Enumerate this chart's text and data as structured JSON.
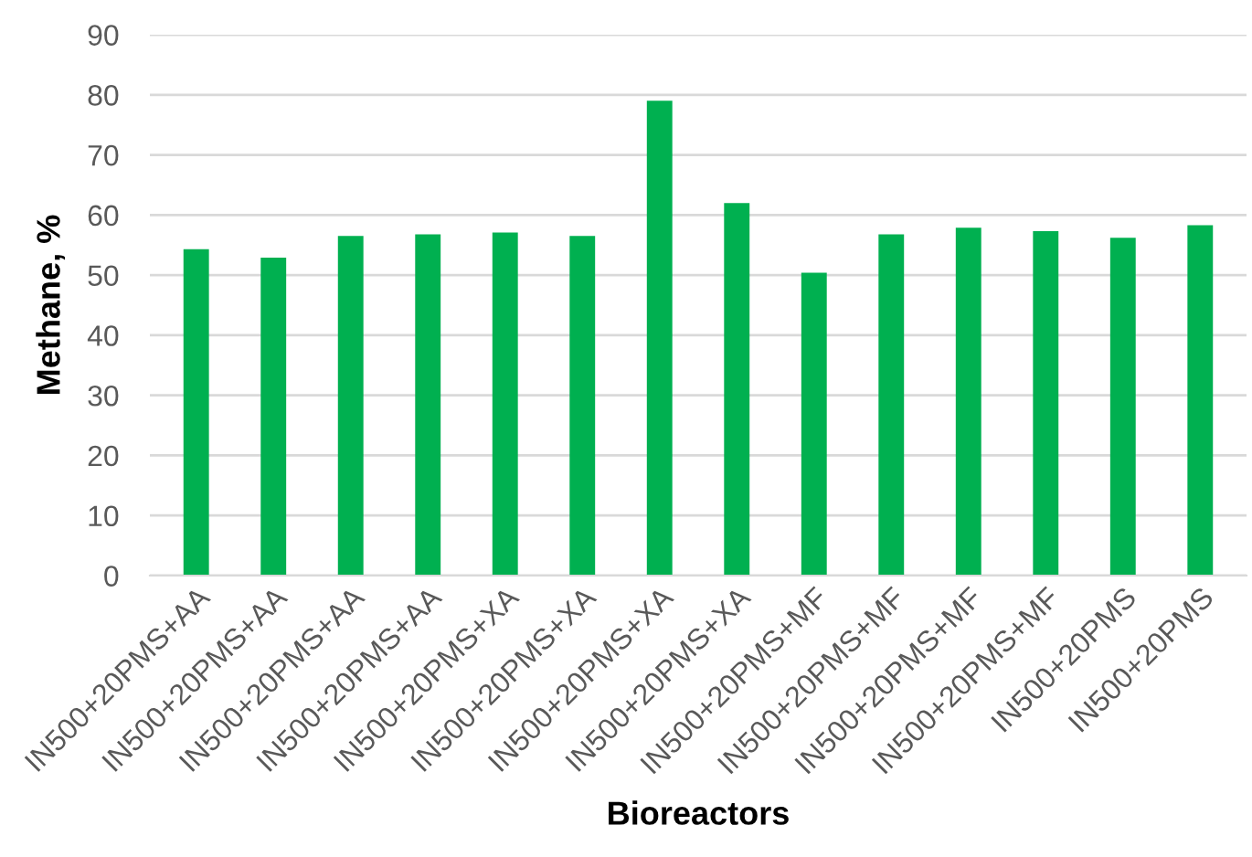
{
  "chart_data": {
    "type": "bar",
    "xlabel": "Bioreactors",
    "ylabel": "Methane, %",
    "categories": [
      "IN500+20PMS+AA",
      "IN500+20PMS+AA",
      "IN500+20PMS+AA",
      "IN500+20PMS+AA",
      "IN500+20PMS+XA",
      "IN500+20PMS+XA",
      "IN500+20PMS+XA",
      "IN500+20PMS+XA",
      "IN500+20PMS+MF",
      "IN500+20PMS+MF",
      "IN500+20PMS+MF",
      "IN500+20PMS+MF",
      "IN500+20PMS",
      "IN500+20PMS"
    ],
    "values": [
      54.3,
      52.9,
      56.5,
      56.8,
      57.1,
      56.5,
      79.0,
      62.0,
      50.4,
      56.8,
      57.9,
      57.3,
      56.2,
      58.3
    ],
    "color": "#00b050",
    "ylim": [
      0,
      90
    ],
    "yticks": [
      0,
      10,
      20,
      30,
      40,
      50,
      60,
      70,
      80,
      90
    ],
    "grid": "y"
  }
}
